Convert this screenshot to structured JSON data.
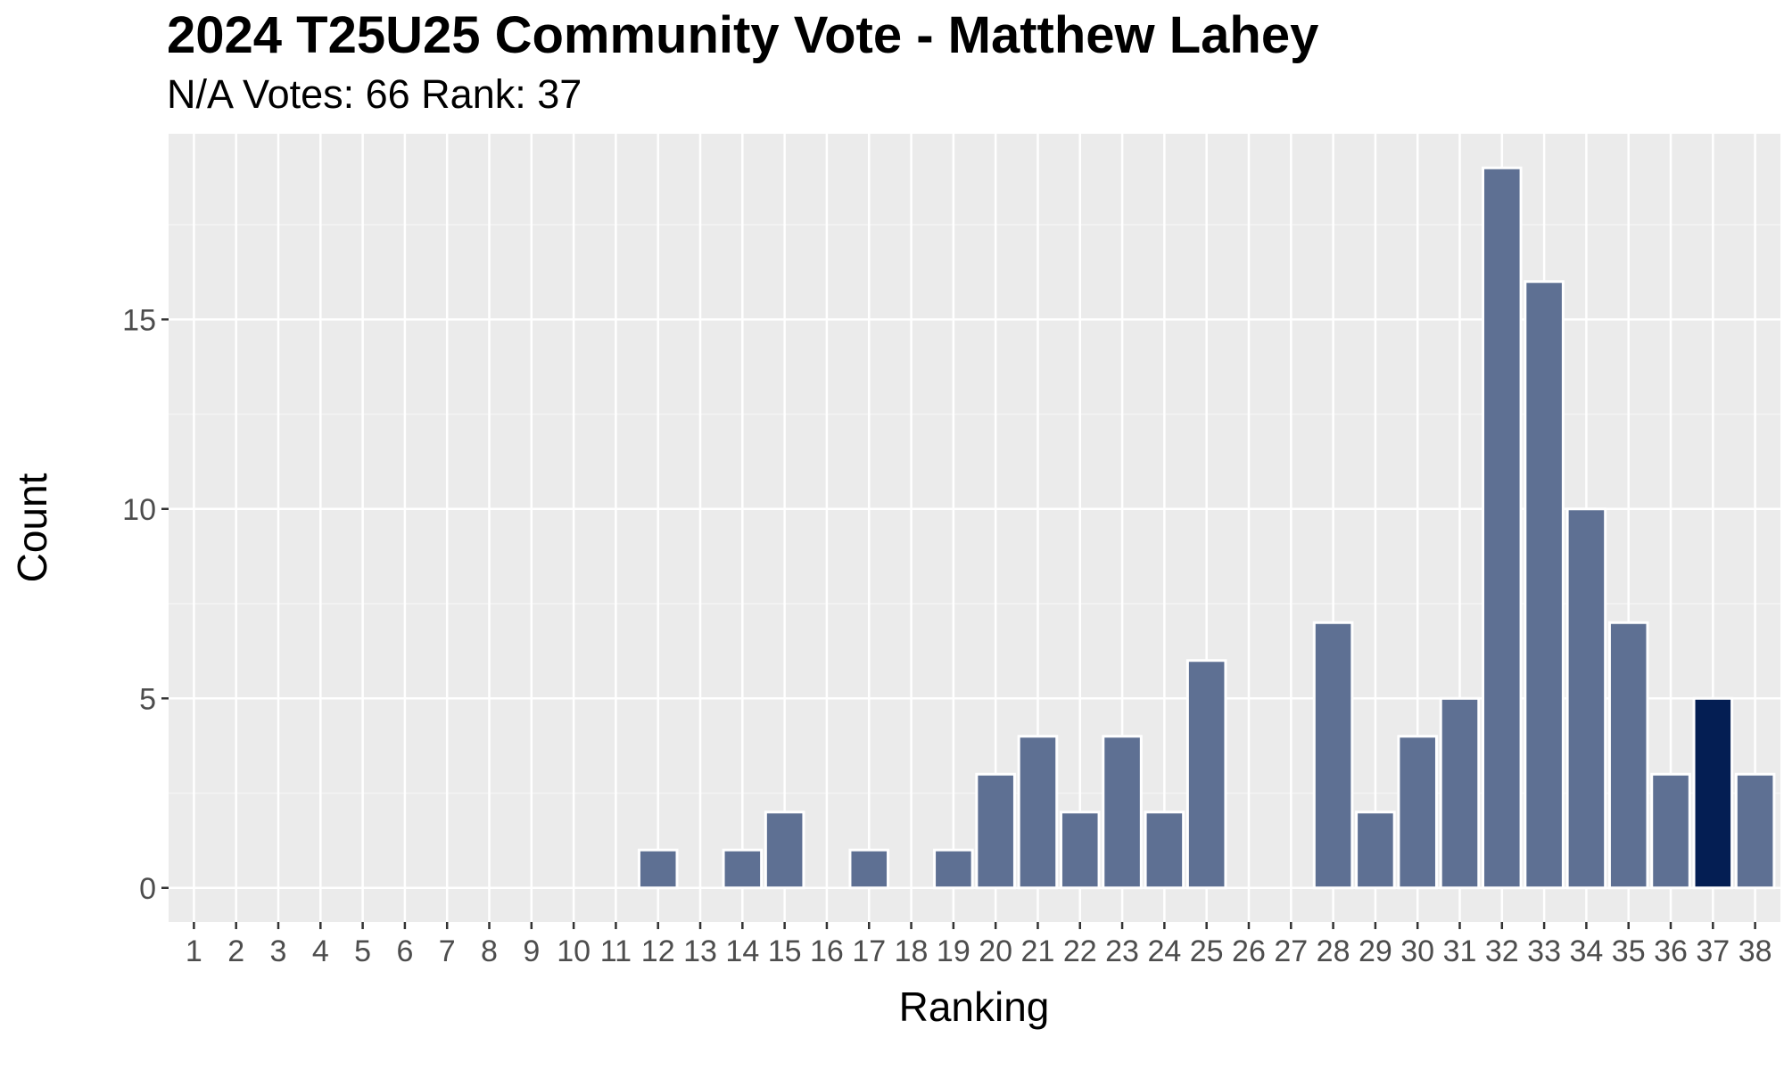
{
  "chart_data": {
    "type": "bar",
    "title": "2024 T25U25 Community Vote - Matthew Lahey",
    "subtitle": "N/A Votes: 66  Rank: 37",
    "xlabel": "Ranking",
    "ylabel": "Count",
    "categories": [
      "1",
      "2",
      "3",
      "4",
      "5",
      "6",
      "7",
      "8",
      "9",
      "10",
      "11",
      "12",
      "13",
      "14",
      "15",
      "16",
      "17",
      "18",
      "19",
      "20",
      "21",
      "22",
      "23",
      "24",
      "25",
      "26",
      "27",
      "28",
      "29",
      "30",
      "31",
      "32",
      "33",
      "34",
      "35",
      "36",
      "37",
      "38"
    ],
    "values": [
      0,
      0,
      0,
      0,
      0,
      0,
      0,
      0,
      0,
      0,
      0,
      1,
      0,
      1,
      2,
      0,
      1,
      0,
      1,
      3,
      4,
      2,
      4,
      2,
      6,
      0,
      0,
      7,
      2,
      4,
      5,
      19,
      16,
      10,
      7,
      3,
      5,
      3
    ],
    "highlight_category": "37",
    "yticks": [
      0,
      5,
      10,
      15
    ],
    "ylim": [
      -0.9,
      19.9
    ],
    "grid": true,
    "colors": {
      "bar": "#5e7093",
      "highlight": "#041e53",
      "panel": "#ebebeb",
      "grid_major": "#ffffff",
      "grid_minor": "#f4f4f4"
    }
  }
}
